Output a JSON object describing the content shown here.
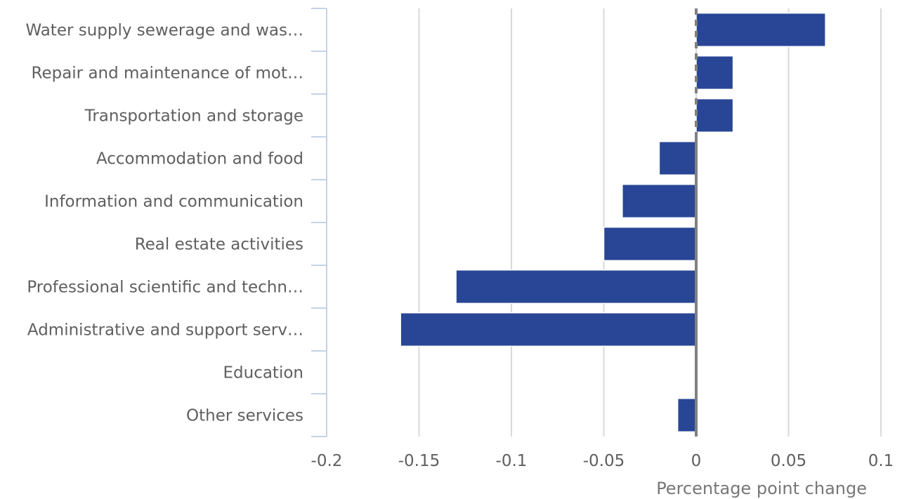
{
  "chart_data": {
    "type": "bar",
    "orientation": "horizontal",
    "categories": [
      "Water supply sewerage and was…",
      "Repair and maintenance of mot…",
      "Transportation and storage",
      "Accommodation and food",
      "Information and communication",
      "Real estate activities",
      "Professional scientific and techn…",
      "Administrative and support serv…",
      "Education",
      "Other services"
    ],
    "values": [
      0.07,
      0.02,
      0.02,
      -0.02,
      -0.04,
      -0.05,
      -0.13,
      -0.16,
      0,
      -0.01
    ],
    "xlabel": "Percentage point change",
    "ylabel": "",
    "xlim": [
      -0.2,
      0.1
    ],
    "xticks": [
      -0.2,
      -0.15,
      -0.1,
      -0.05,
      0,
      0.05,
      0.1
    ],
    "xtick_labels": [
      "-0.2",
      "-0.15",
      "-0.1",
      "-0.05",
      "0",
      "0.05",
      "0.1"
    ],
    "grid": "vertical",
    "colors": {
      "bar": "#284695",
      "grid": "#d9d9d9",
      "zero_line": "#808080",
      "category_axis": "#c5d3e8",
      "text": "#5f5f5f"
    }
  }
}
